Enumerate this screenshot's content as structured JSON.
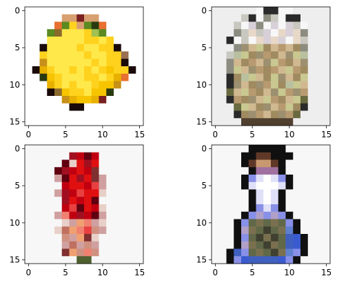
{
  "chart_data": [
    {
      "type": "heatmap",
      "title": "",
      "xlabel": "",
      "ylabel": "",
      "xlim": [
        -0.5,
        15.5
      ],
      "ylim": [
        15.5,
        -0.5
      ],
      "x_ticks": [
        0,
        5,
        10,
        15
      ],
      "y_ticks": [
        0,
        5,
        10,
        15
      ],
      "grid": false,
      "palette": [
        "#ffffff",
        "#ffe84a",
        "#ffd21e",
        "#f7c400",
        "#e8b000",
        "#c79018",
        "#8a6a2a",
        "#5a8a20",
        "#2a3a10",
        "#7a2020",
        "#1a0a0a",
        "#d8a070",
        "#a0c050",
        "#e87030",
        "#9a7050"
      ],
      "cells": [
        [
          0,
          0,
          0,
          0,
          0,
          0,
          0,
          0,
          0,
          0,
          0,
          0,
          0,
          0,
          0,
          0
        ],
        [
          0,
          0,
          0,
          0,
          0,
          11,
          11,
          9,
          11,
          11,
          0,
          0,
          0,
          0,
          0,
          0
        ],
        [
          0,
          0,
          0,
          0,
          13,
          7,
          2,
          11,
          7,
          8,
          13,
          0,
          0,
          0,
          0,
          0
        ],
        [
          0,
          0,
          0,
          7,
          6,
          1,
          1,
          1,
          2,
          12,
          7,
          0,
          0,
          0,
          0,
          0
        ],
        [
          0,
          0,
          0,
          1,
          1,
          1,
          1,
          1,
          2,
          2,
          1,
          2,
          0,
          0,
          0,
          0
        ],
        [
          0,
          0,
          10,
          1,
          1,
          1,
          1,
          2,
          1,
          1,
          2,
          2,
          10,
          0,
          0,
          0
        ],
        [
          0,
          0,
          2,
          1,
          1,
          1,
          1,
          1,
          2,
          1,
          1,
          2,
          2,
          14,
          0,
          0
        ],
        [
          0,
          0,
          5,
          1,
          1,
          1,
          1,
          1,
          1,
          2,
          1,
          2,
          2,
          10,
          0,
          0
        ],
        [
          0,
          10,
          4,
          2,
          1,
          1,
          2,
          1,
          2,
          1,
          2,
          3,
          2,
          2,
          10,
          0
        ],
        [
          0,
          0,
          8,
          3,
          2,
          1,
          1,
          1,
          2,
          2,
          1,
          2,
          4,
          13,
          0,
          0
        ],
        [
          0,
          0,
          0,
          4,
          2,
          1,
          2,
          1,
          1,
          2,
          3,
          3,
          5,
          0,
          0,
          0
        ],
        [
          0,
          0,
          0,
          10,
          6,
          3,
          2,
          2,
          1,
          3,
          3,
          8,
          0,
          0,
          0,
          0
        ],
        [
          0,
          0,
          0,
          0,
          0,
          5,
          4,
          3,
          3,
          4,
          9,
          0,
          0,
          0,
          0,
          0
        ],
        [
          0,
          0,
          0,
          0,
          0,
          0,
          10,
          10,
          0,
          0,
          0,
          0,
          0,
          0,
          0,
          0
        ],
        [
          0,
          0,
          0,
          0,
          0,
          0,
          0,
          0,
          0,
          0,
          0,
          0,
          0,
          0,
          0,
          0
        ],
        [
          0,
          0,
          0,
          0,
          0,
          0,
          0,
          0,
          0,
          0,
          0,
          0,
          0,
          0,
          0,
          0
        ]
      ]
    },
    {
      "type": "heatmap",
      "title": "",
      "xlabel": "",
      "ylabel": "",
      "xlim": [
        -0.5,
        15.5
      ],
      "ylim": [
        15.5,
        -0.5
      ],
      "x_ticks": [
        0,
        5,
        10,
        15
      ],
      "y_ticks": [
        0,
        5,
        10,
        15
      ],
      "grid": false,
      "palette": [
        "#eeeeee",
        "#f7f7f7",
        "#c8c8c0",
        "#8c8c80",
        "#2a2a2a",
        "#d0b890",
        "#b89a70",
        "#a08a60",
        "#c8c890",
        "#9c9070",
        "#6a6a40",
        "#e8d8c8",
        "#d8d0d8",
        "#b8c0a0",
        "#504030"
      ],
      "cells": [
        [
          0,
          0,
          0,
          0,
          0,
          0,
          1,
          4,
          4,
          1,
          1,
          0,
          0,
          0,
          0,
          0
        ],
        [
          0,
          0,
          0,
          0,
          2,
          4,
          1,
          3,
          2,
          1,
          4,
          4,
          0,
          0,
          0,
          0
        ],
        [
          0,
          0,
          0,
          2,
          1,
          12,
          3,
          1,
          12,
          1,
          12,
          2,
          1,
          0,
          0,
          0
        ],
        [
          0,
          0,
          0,
          3,
          2,
          11,
          2,
          12,
          1,
          11,
          12,
          11,
          3,
          0,
          0,
          0
        ],
        [
          0,
          0,
          4,
          1,
          2,
          1,
          11,
          12,
          11,
          12,
          1,
          11,
          2,
          0,
          0,
          0
        ],
        [
          0,
          0,
          0,
          3,
          9,
          5,
          8,
          7,
          5,
          6,
          5,
          7,
          3,
          0,
          0,
          0
        ],
        [
          0,
          0,
          2,
          13,
          8,
          7,
          9,
          6,
          7,
          5,
          9,
          8,
          13,
          0,
          0,
          0
        ],
        [
          0,
          0,
          3,
          5,
          7,
          6,
          5,
          9,
          8,
          6,
          7,
          5,
          9,
          0,
          0,
          0
        ],
        [
          0,
          0,
          3,
          8,
          5,
          9,
          6,
          7,
          6,
          5,
          8,
          6,
          7,
          0,
          0,
          0
        ],
        [
          0,
          0,
          4,
          7,
          13,
          8,
          5,
          7,
          8,
          9,
          5,
          7,
          8,
          0,
          0,
          0
        ],
        [
          0,
          0,
          4,
          9,
          5,
          7,
          9,
          6,
          8,
          7,
          13,
          8,
          5,
          0,
          0,
          0
        ],
        [
          0,
          0,
          10,
          5,
          8,
          6,
          7,
          5,
          9,
          8,
          6,
          9,
          6,
          0,
          0,
          0
        ],
        [
          0,
          0,
          4,
          6,
          7,
          9,
          5,
          8,
          6,
          7,
          5,
          8,
          10,
          0,
          0,
          0
        ],
        [
          0,
          0,
          0,
          10,
          8,
          5,
          7,
          9,
          5,
          6,
          8,
          7,
          4,
          0,
          0,
          0
        ],
        [
          0,
          0,
          0,
          4,
          7,
          9,
          6,
          5,
          7,
          9,
          6,
          10,
          0,
          0,
          0,
          0
        ],
        [
          0,
          0,
          0,
          0,
          14,
          14,
          14,
          14,
          14,
          14,
          14,
          0,
          0,
          0,
          0,
          0
        ]
      ]
    },
    {
      "type": "heatmap",
      "title": "",
      "xlabel": "",
      "ylabel": "",
      "xlim": [
        -0.5,
        15.5
      ],
      "ylim": [
        15.5,
        -0.5
      ],
      "x_ticks": [
        0,
        5,
        10,
        15
      ],
      "y_ticks": [
        0,
        5,
        10,
        15
      ],
      "grid": false,
      "palette": [
        "#f7f7f7",
        "#ffffff",
        "#e01010",
        "#c00010",
        "#a01020",
        "#600010",
        "#e84040",
        "#f08070",
        "#d0a0a0",
        "#e8d0c8",
        "#f0a070",
        "#d09080",
        "#803030",
        "#506030",
        "#c07060"
      ],
      "cells": [
        [
          0,
          0,
          0,
          0,
          0,
          0,
          0,
          0,
          0,
          0,
          0,
          0,
          0,
          0,
          0,
          0
        ],
        [
          0,
          0,
          0,
          0,
          0,
          0,
          4,
          3,
          5,
          3,
          0,
          0,
          0,
          0,
          0,
          0
        ],
        [
          0,
          0,
          0,
          0,
          0,
          5,
          9,
          2,
          4,
          2,
          0,
          0,
          0,
          0,
          0,
          0
        ],
        [
          0,
          0,
          0,
          0,
          5,
          4,
          3,
          2,
          3,
          12,
          0,
          0,
          0,
          0,
          0,
          0
        ],
        [
          0,
          0,
          0,
          0,
          8,
          5,
          2,
          4,
          2,
          12,
          8,
          0,
          0,
          0,
          0,
          0
        ],
        [
          0,
          0,
          0,
          0,
          0,
          3,
          2,
          2,
          3,
          6,
          8,
          0,
          0,
          0,
          0,
          0
        ],
        [
          0,
          0,
          0,
          0,
          8,
          4,
          3,
          6,
          2,
          2,
          9,
          0,
          0,
          0,
          0,
          0
        ],
        [
          0,
          0,
          0,
          0,
          0,
          4,
          2,
          3,
          2,
          5,
          0,
          0,
          0,
          0,
          0,
          0
        ],
        [
          0,
          0,
          0,
          0,
          0,
          3,
          6,
          5,
          2,
          3,
          9,
          0,
          0,
          0,
          0,
          0
        ],
        [
          0,
          0,
          0,
          0,
          8,
          7,
          3,
          4,
          3,
          5,
          8,
          0,
          0,
          0,
          0,
          0
        ],
        [
          0,
          0,
          0,
          0,
          0,
          9,
          8,
          10,
          7,
          8,
          9,
          0,
          0,
          0,
          0,
          0
        ],
        [
          0,
          0,
          0,
          0,
          9,
          14,
          10,
          7,
          6,
          11,
          8,
          0,
          0,
          0,
          0,
          0
        ],
        [
          0,
          0,
          0,
          0,
          0,
          11,
          8,
          10,
          12,
          9,
          0,
          0,
          0,
          0,
          0,
          0
        ],
        [
          0,
          0,
          0,
          0,
          0,
          8,
          14,
          8,
          11,
          8,
          0,
          0,
          0,
          0,
          0,
          0
        ],
        [
          0,
          0,
          0,
          0,
          0,
          12,
          10,
          11,
          7,
          11,
          0,
          0,
          0,
          0,
          0,
          0
        ],
        [
          0,
          0,
          0,
          0,
          0,
          0,
          0,
          13,
          13,
          0,
          0,
          0,
          0,
          0,
          0,
          0
        ]
      ]
    },
    {
      "type": "heatmap",
      "title": "",
      "xlabel": "",
      "ylabel": "",
      "xlim": [
        -0.5,
        15.5
      ],
      "ylim": [
        15.5,
        -0.5
      ],
      "x_ticks": [
        0,
        5,
        10,
        15
      ],
      "y_ticks": [
        0,
        5,
        10,
        15
      ],
      "grid": false,
      "palette": [
        "#f7f7f7",
        "#101010",
        "#603828",
        "#c89870",
        "#a070a0",
        "#8890e8",
        "#e0e0f8",
        "#ffffff",
        "#606848",
        "#7a7050",
        "#4060c0",
        "#3a5ad0",
        "#404030",
        "#b0a0c8",
        "#6080d0"
      ],
      "cells": [
        [
          0,
          0,
          0,
          0,
          0,
          1,
          1,
          1,
          1,
          1,
          0,
          0,
          0,
          0,
          0,
          0
        ],
        [
          0,
          0,
          0,
          0,
          1,
          1,
          2,
          2,
          1,
          1,
          1,
          0,
          0,
          0,
          0,
          0
        ],
        [
          0,
          0,
          0,
          0,
          1,
          2,
          3,
          3,
          2,
          1,
          0,
          0,
          0,
          0,
          0,
          0
        ],
        [
          0,
          0,
          0,
          0,
          0,
          1,
          4,
          4,
          4,
          1,
          0,
          0,
          0,
          0,
          0,
          0
        ],
        [
          0,
          0,
          0,
          0,
          1,
          5,
          6,
          7,
          6,
          5,
          1,
          0,
          0,
          0,
          0,
          0
        ],
        [
          0,
          0,
          0,
          0,
          1,
          6,
          7,
          7,
          7,
          6,
          1,
          0,
          0,
          0,
          0,
          0
        ],
        [
          0,
          0,
          0,
          0,
          0,
          1,
          6,
          7,
          6,
          1,
          0,
          0,
          0,
          0,
          0,
          0
        ],
        [
          0,
          0,
          0,
          0,
          0,
          1,
          6,
          7,
          6,
          1,
          0,
          0,
          0,
          0,
          0,
          0
        ],
        [
          0,
          0,
          0,
          0,
          0,
          1,
          5,
          6,
          5,
          1,
          0,
          0,
          0,
          0,
          0,
          0
        ],
        [
          0,
          0,
          0,
          0,
          1,
          5,
          13,
          5,
          13,
          5,
          1,
          0,
          0,
          0,
          0,
          0
        ],
        [
          0,
          0,
          0,
          1,
          5,
          8,
          9,
          8,
          9,
          8,
          5,
          1,
          0,
          0,
          0,
          0
        ],
        [
          0,
          0,
          0,
          1,
          13,
          9,
          8,
          12,
          8,
          9,
          14,
          1,
          0,
          0,
          0,
          0
        ],
        [
          0,
          0,
          0,
          1,
          5,
          8,
          12,
          9,
          12,
          8,
          10,
          11,
          1,
          0,
          0,
          0
        ],
        [
          0,
          0,
          0,
          1,
          13,
          9,
          8,
          12,
          9,
          8,
          10,
          11,
          1,
          0,
          0,
          0
        ],
        [
          0,
          0,
          1,
          10,
          5,
          8,
          9,
          8,
          12,
          9,
          14,
          5,
          1,
          0,
          0,
          0
        ],
        [
          0,
          0,
          1,
          5,
          11,
          10,
          10,
          10,
          10,
          11,
          5,
          1,
          0,
          0,
          0,
          0
        ]
      ]
    }
  ]
}
